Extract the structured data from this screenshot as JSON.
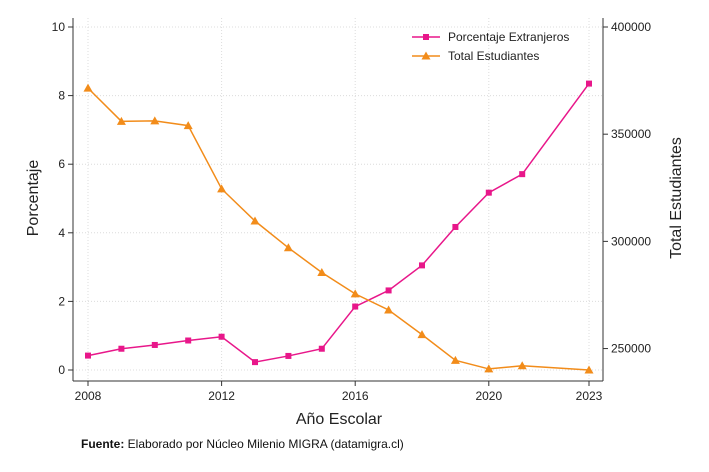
{
  "chart_data": {
    "type": "line",
    "x": [
      2008,
      2009,
      2010,
      2011,
      2012,
      2013,
      2014,
      2015,
      2016,
      2017,
      2018,
      2019,
      2020,
      2021,
      2023
    ],
    "series": [
      {
        "name": "Porcentaje Extranjeros",
        "axis": "left",
        "color": "#e8178a",
        "marker": "square",
        "values": [
          0.42,
          0.62,
          0.73,
          0.86,
          0.97,
          0.23,
          0.41,
          0.62,
          1.85,
          2.32,
          3.05,
          4.17,
          5.17,
          5.71,
          8.35
        ]
      },
      {
        "name": "Total Estudiantes",
        "axis": "right",
        "color": "#f28c1a",
        "marker": "triangle",
        "values": [
          371500,
          356000,
          356200,
          354000,
          324500,
          309500,
          297000,
          285500,
          275500,
          268000,
          256500,
          244500,
          240500,
          242000,
          240000
        ]
      }
    ],
    "xlabel": "Año Escolar",
    "ylabel_left": "Porcentaje",
    "ylabel_right": "Total Estudiantes",
    "xticks": [
      2008,
      2012,
      2016,
      2020,
      2023
    ],
    "yticks_left": [
      0,
      2,
      4,
      6,
      8,
      10
    ],
    "yticks_right": [
      250000,
      300000,
      350000,
      400000
    ],
    "xlim": [
      2008,
      2023
    ],
    "ylim_left": [
      0,
      10
    ],
    "ylim_right": [
      240000,
      400000
    ],
    "grid": true,
    "legend_position": "top-right"
  },
  "footer": {
    "label": "Fuente:",
    "text": " Elaborado por Núcleo Milenio MIGRA (datamigra.cl)"
  }
}
